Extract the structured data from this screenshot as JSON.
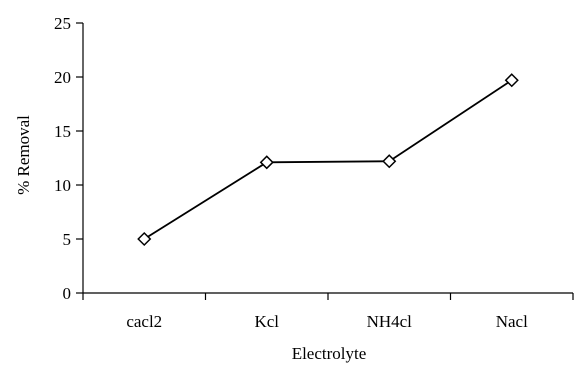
{
  "chart_data": {
    "type": "line",
    "categories": [
      "cacl2",
      "Kcl",
      "NH4cl",
      "Nacl"
    ],
    "series": [
      {
        "values": [
          5.0,
          12.1,
          12.2,
          19.7
        ],
        "marker": "diamond",
        "color": "#000000"
      }
    ],
    "xlabel": "Electrolyte",
    "ylabel": "% Removal",
    "ylim": [
      0,
      25
    ],
    "yticks": [
      0,
      5,
      10,
      15,
      20,
      25
    ],
    "grid": false
  }
}
